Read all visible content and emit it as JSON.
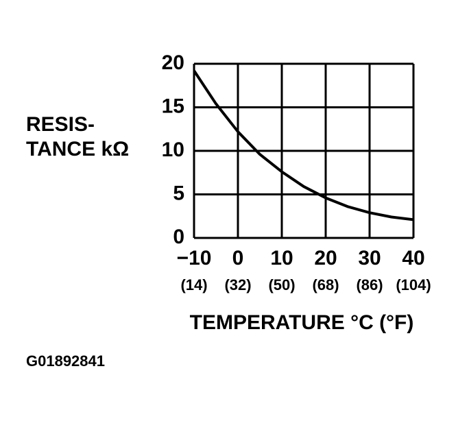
{
  "chart_data": {
    "type": "line",
    "ylabel_lines": [
      "RESIS-",
      "TANCE kΩ"
    ],
    "xlabel": "TEMPERATURE °C (°F)",
    "figure_id": "G01892841",
    "x": [
      -10,
      -5,
      0,
      5,
      10,
      15,
      20,
      25,
      30,
      35,
      40
    ],
    "series": [
      {
        "color": "#000000",
        "values": [
          19.2,
          15.4,
          12.2,
          9.6,
          7.6,
          5.9,
          4.6,
          3.6,
          2.9,
          2.4,
          2.1
        ]
      }
    ],
    "xlim": [
      -10,
      40
    ],
    "xticks": [
      {
        "value": -10,
        "label": "−10"
      },
      0,
      10,
      20,
      30,
      40
    ],
    "xtick_sublabels": [
      "(14)",
      "(32)",
      "(50)",
      "(68)",
      "(86)",
      "(104)"
    ],
    "ylim": [
      0,
      20
    ],
    "yticks": [
      0,
      5,
      10,
      15,
      20
    ],
    "grid": true
  }
}
